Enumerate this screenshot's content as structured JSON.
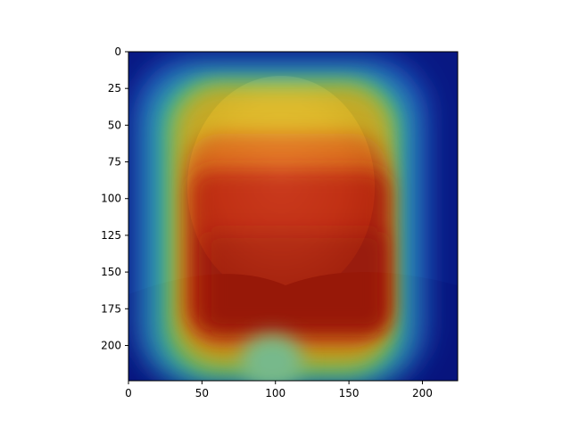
{
  "chart_data": {
    "type": "heatmap",
    "title": "",
    "xlabel": "",
    "ylabel": "",
    "xlim": [
      0,
      224
    ],
    "ylim": [
      224,
      0
    ],
    "y_axis_inverted": true,
    "grid": false,
    "legend": "none",
    "colormap": "jet",
    "overlay_on_photo": true,
    "x_ticks": [
      0,
      50,
      100,
      150,
      200
    ],
    "y_ticks": [
      0,
      25,
      50,
      75,
      100,
      125,
      150,
      175,
      200
    ],
    "hot_region": {
      "peak_center": [
        108,
        155
      ],
      "red_extent_x": [
        35,
        180
      ],
      "red_extent_y": [
        65,
        200
      ]
    },
    "colors": {
      "low": "#00008f",
      "mid": "#33c8a8",
      "warm": "#d9c020",
      "high": "#c41d06"
    }
  }
}
